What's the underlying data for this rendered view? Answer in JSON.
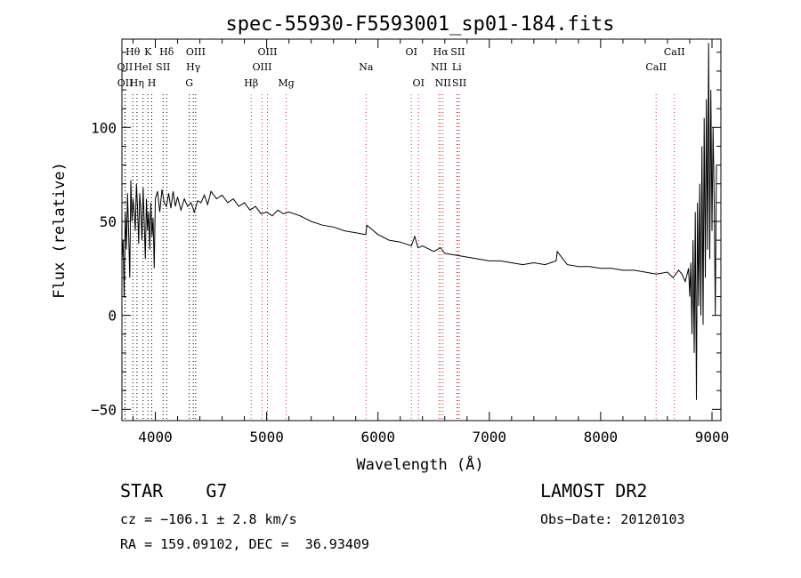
{
  "chart_data": {
    "type": "line",
    "title": "spec-55930-F5593001_sp01-184.fits",
    "xlabel": "Wavelength (Å)",
    "ylabel": "Flux (relative)",
    "xlim": [
      3700,
      9080
    ],
    "ylim": [
      -56,
      147
    ],
    "xticks": [
      4000,
      5000,
      6000,
      7000,
      8000,
      9000
    ],
    "yticks": [
      -50,
      0,
      50,
      100
    ],
    "series": [
      {
        "x": [
          3700,
          3710,
          3720,
          3730,
          3740,
          3750,
          3760,
          3770,
          3780,
          3790,
          3800,
          3810,
          3820,
          3830,
          3840,
          3850,
          3860,
          3870,
          3880,
          3890,
          3900,
          3910,
          3920,
          3930,
          3940,
          3950,
          3960,
          3970,
          3980,
          3990,
          4000,
          4020,
          4040,
          4060,
          4080,
          4100,
          4120,
          4140,
          4160,
          4180,
          4200,
          4230,
          4260,
          4290,
          4320,
          4350,
          4380,
          4410,
          4440,
          4470,
          4500,
          4550,
          4600,
          4650,
          4700,
          4750,
          4800,
          4850,
          4900,
          4950,
          5000,
          5050,
          5100,
          5150,
          5200,
          5300,
          5400,
          5500,
          5600,
          5700,
          5800,
          5890,
          5900,
          6000,
          6100,
          6200,
          6300,
          6330,
          6360,
          6400,
          6500,
          6560,
          6600,
          6700,
          6800,
          6900,
          7000,
          7100,
          7200,
          7300,
          7400,
          7500,
          7600,
          7610,
          7700,
          7800,
          7900,
          8000,
          8100,
          8200,
          8300,
          8400,
          8500,
          8600,
          8650,
          8700,
          8730,
          8760,
          8790,
          8800,
          8810,
          8820,
          8830,
          8840,
          8850,
          8860,
          8870,
          8880,
          8890,
          8900,
          8910,
          8920,
          8930,
          8940,
          8950,
          8960,
          8970,
          8980,
          8990,
          9000,
          9010,
          9020,
          9030,
          9040
        ],
        "values": [
          30,
          40,
          10,
          55,
          35,
          65,
          45,
          20,
          72,
          50,
          62,
          55,
          45,
          70,
          58,
          38,
          65,
          55,
          40,
          68,
          50,
          30,
          62,
          45,
          55,
          35,
          60,
          42,
          52,
          25,
          62,
          66,
          55,
          67,
          60,
          58,
          65,
          57,
          66,
          58,
          63,
          56,
          62,
          58,
          60,
          55,
          61,
          60,
          64,
          59,
          66,
          62,
          64,
          60,
          62,
          58,
          60,
          56,
          58,
          54,
          55,
          53,
          56,
          54,
          55,
          53,
          50,
          48,
          47,
          45,
          44,
          43,
          48,
          43,
          40,
          39,
          37,
          42,
          36,
          37,
          34,
          36,
          33,
          32,
          31,
          30,
          29,
          29,
          28,
          27,
          28,
          27,
          29,
          34,
          27,
          26,
          26,
          25,
          25,
          24,
          24,
          23,
          22,
          23,
          20,
          24,
          22,
          18,
          25,
          10,
          28,
          -10,
          40,
          -20,
          55,
          -45,
          60,
          5,
          70,
          0,
          90,
          -5,
          105,
          20,
          115,
          35,
          145,
          30,
          120,
          45,
          100,
          60,
          0,
          80
        ]
      }
    ],
    "lines": [
      {
        "label": "Hθ",
        "x": 3798,
        "row": 1
      },
      {
        "label": "OII",
        "x": 3727,
        "row": 2
      },
      {
        "label": "OII",
        "x": 3729,
        "row": 3
      },
      {
        "label": "K",
        "x": 3934,
        "row": 1
      },
      {
        "label": "HeI",
        "x": 3889,
        "row": 2
      },
      {
        "label": "Hη",
        "x": 3835,
        "row": 3
      },
      {
        "label": "H",
        "x": 3968,
        "row": 3
      },
      {
        "label": "Hδ",
        "x": 4102,
        "row": 1
      },
      {
        "label": "SII",
        "x": 4070,
        "row": 2
      },
      {
        "label": "OIII",
        "x": 4363,
        "row": 1
      },
      {
        "label": "Hγ",
        "x": 4341,
        "row": 2
      },
      {
        "label": "G",
        "x": 4305,
        "row": 3
      },
      {
        "label": "OIII",
        "x": 5007,
        "row": 1
      },
      {
        "label": "OIII",
        "x": 4959,
        "row": 2
      },
      {
        "label": "Hβ",
        "x": 4861,
        "row": 3
      },
      {
        "label": "Mg",
        "x": 5175,
        "row": 3
      },
      {
        "label": "Na",
        "x": 5893,
        "row": 2
      },
      {
        "label": "OI",
        "x": 6300,
        "row": 1
      },
      {
        "label": "OI",
        "x": 6364,
        "row": 3
      },
      {
        "label": "Hα",
        "x": 6563,
        "row": 1
      },
      {
        "label": "SII",
        "x": 6717,
        "row": 1
      },
      {
        "label": "NII",
        "x": 6548,
        "row": 2
      },
      {
        "label": "Li",
        "x": 6708,
        "row": 2
      },
      {
        "label": "NII",
        "x": 6584,
        "row": 3
      },
      {
        "label": "SII",
        "x": 6731,
        "row": 3
      },
      {
        "label": "CaII",
        "x": 8662,
        "row": 1
      },
      {
        "label": "CaII",
        "x": 8498,
        "row": 2
      }
    ]
  },
  "info": {
    "object_class": "STAR    G7",
    "survey": "LAMOST DR2",
    "cz": "cz = −106.1 ± 2.8 km/s",
    "obs_date": "Obs−Date: 20120103",
    "radec": "RA = 159.09102, DEC =  36.93409"
  },
  "colors": {
    "axes": "#000000",
    "spectrum": "#000000",
    "line_marker": "#cc3333",
    "grid_dotted": "#000000"
  }
}
